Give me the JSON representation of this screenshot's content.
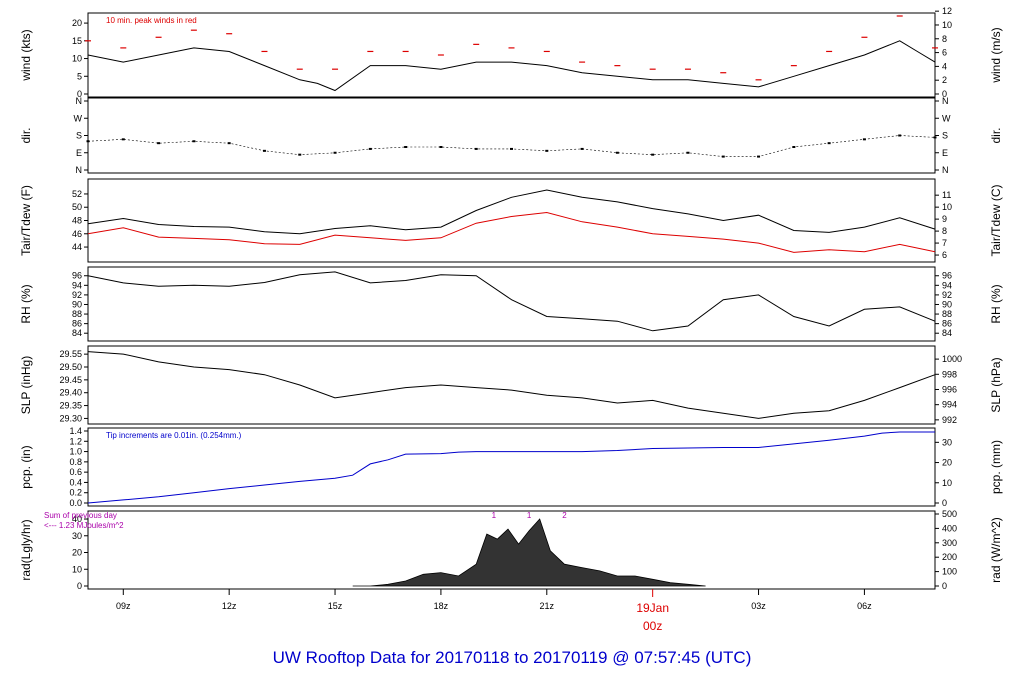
{
  "title": "UW Rooftop Data for 20170118  to  20170119 @ 07:57:45  (UTC)",
  "colors": {
    "black": "#000000",
    "red": "#dd0000",
    "blue": "#0000cc",
    "purple": "#aa00aa",
    "bg": "#ffffff"
  },
  "chart_data": {
    "type": "line",
    "x_axis": {
      "ticks": [
        {
          "hour": 9,
          "label": "09z"
        },
        {
          "hour": 12,
          "label": "12z"
        },
        {
          "hour": 15,
          "label": "15z"
        },
        {
          "hour": 18,
          "label": "18z"
        },
        {
          "hour": 21,
          "label": "21z"
        },
        {
          "hour": 27,
          "label": "03z"
        },
        {
          "hour": 30,
          "label": "06z"
        }
      ],
      "midnight": {
        "hour": 24,
        "date_label": "19Jan",
        "time_label": "00z"
      },
      "range_hours": [
        8,
        32
      ]
    },
    "panels": [
      {
        "id": "wind",
        "ylabel_left": "wind (kts)",
        "ylabel_right": "wind (m/s)",
        "ylim": [
          0,
          22
        ],
        "yticks_left": [
          0,
          5,
          10,
          15,
          20
        ],
        "right_ylim": [
          0,
          11.3
        ],
        "yticks_right": [
          0,
          2,
          4,
          6,
          8,
          10,
          12
        ],
        "annotation": "10 min. peak winds in red",
        "series": [
          {
            "color": "#000000",
            "x": [
              8,
              9,
              10,
              11,
              12,
              13,
              14,
              14.5,
              15,
              16,
              17,
              18,
              19,
              20,
              21,
              22,
              23,
              24,
              25,
              26,
              27,
              28,
              29,
              30,
              31,
              31.5,
              32
            ],
            "y": [
              11,
              9,
              11,
              13,
              12,
              8,
              4,
              3,
              1,
              8,
              8,
              7,
              9,
              9,
              8,
              6,
              5,
              4,
              4,
              3,
              2,
              5,
              8,
              11,
              15,
              12,
              9
            ]
          },
          {
            "color": "#dd0000",
            "x": [
              8,
              9,
              10,
              11,
              12,
              13,
              14,
              15,
              16,
              17,
              18,
              19,
              20,
              21,
              22,
              23,
              24,
              25,
              26,
              27,
              28,
              29,
              30,
              31,
              32
            ],
            "y": [
              15,
              13,
              16,
              18,
              17,
              12,
              7,
              7,
              12,
              12,
              11,
              14,
              13,
              12,
              9,
              8,
              7,
              7,
              6,
              4,
              8,
              12,
              16,
              22,
              13
            ]
          }
        ]
      },
      {
        "id": "dir",
        "ylabel_left": "dir.",
        "ylabel_right": "dir.",
        "ylim": [
          0,
          360
        ],
        "yticks_left": [
          "N",
          "E",
          "S",
          "W",
          "N"
        ],
        "yticks_right": [
          "N",
          "E",
          "S",
          "W",
          "N"
        ],
        "series": [
          {
            "color": "#000000",
            "x": [
              8,
              9,
              10,
              11,
              12,
              13,
              14,
              15,
              16,
              17,
              18,
              19,
              20,
              21,
              22,
              23,
              24,
              25,
              26,
              27,
              28,
              29,
              30,
              31,
              32
            ],
            "y": [
              150,
              160,
              140,
              150,
              140,
              100,
              80,
              90,
              110,
              120,
              120,
              110,
              110,
              100,
              110,
              90,
              80,
              90,
              70,
              70,
              120,
              140,
              160,
              180,
              170
            ]
          }
        ]
      },
      {
        "id": "temp",
        "ylabel_left": "Tair/Tdew (F)",
        "ylabel_right": "Tair/Tdew (C)",
        "ylim": [
          42.2,
          53.8
        ],
        "yticks_left": [
          44,
          46,
          48,
          50,
          52
        ],
        "right_ylim": [
          5.67,
          12.1
        ],
        "yticks_right": [
          6,
          7,
          8,
          9,
          10,
          11
        ],
        "series": [
          {
            "color": "#000000",
            "x": [
              8,
              9,
              10,
              11,
              12,
              13,
              14,
              15,
              16,
              17,
              18,
              19,
              20,
              21,
              22,
              23,
              24,
              25,
              26,
              27,
              28,
              29,
              30,
              31,
              32
            ],
            "y": [
              47.5,
              48.3,
              47.4,
              47.1,
              47.0,
              46.3,
              46.0,
              46.8,
              47.2,
              46.6,
              47.0,
              49.5,
              51.5,
              52.6,
              51.5,
              50.8,
              49.8,
              49.0,
              48.0,
              48.8,
              46.5,
              46.2,
              47.0,
              48.4,
              46.7
            ]
          },
          {
            "color": "#dd0000",
            "x": [
              8,
              9,
              10,
              11,
              12,
              13,
              14,
              15,
              16,
              17,
              18,
              19,
              20,
              21,
              22,
              23,
              24,
              25,
              26,
              27,
              28,
              29,
              30,
              31,
              32
            ],
            "y": [
              46.0,
              46.9,
              45.5,
              45.3,
              45.1,
              44.5,
              44.4,
              45.8,
              45.4,
              45.0,
              45.4,
              47.6,
              48.6,
              49.2,
              47.8,
              47.0,
              46.0,
              45.6,
              45.2,
              44.6,
              43.2,
              43.6,
              43.3,
              44.4,
              43.3
            ]
          }
        ]
      },
      {
        "id": "rh",
        "ylabel_left": "RH (%)",
        "ylabel_right": "RH (%)",
        "ylim": [
          83,
          97.2
        ],
        "yticks_left": [
          84,
          86,
          88,
          90,
          92,
          94,
          96
        ],
        "yticks_right": [
          84,
          86,
          88,
          90,
          92,
          94,
          96
        ],
        "series": [
          {
            "color": "#000000",
            "x": [
              8,
              9,
              10,
              11,
              12,
              13,
              14,
              15,
              16,
              17,
              18,
              19,
              20,
              21,
              22,
              23,
              24,
              25,
              26,
              27,
              28,
              29,
              30,
              31,
              32
            ],
            "y": [
              96,
              94.5,
              93.8,
              94,
              93.8,
              94.6,
              96.2,
              96.8,
              94.5,
              95,
              96.2,
              96,
              91,
              87.5,
              87,
              86.5,
              84.5,
              85.5,
              91,
              92,
              87.5,
              85.5,
              89,
              89.5,
              86.5
            ]
          }
        ]
      },
      {
        "id": "slp",
        "ylabel_left": "SLP (inHg)",
        "ylabel_right": "SLP (hPa)",
        "ylim": [
          29.29,
          29.57
        ],
        "yticks_left": [
          29.3,
          29.35,
          29.4,
          29.45,
          29.5,
          29.55
        ],
        "right_ylim": [
          991.85,
          1001.33
        ],
        "yticks_right": [
          992,
          994,
          996,
          998,
          1000
        ],
        "series": [
          {
            "color": "#000000",
            "x": [
              8,
              9,
              10,
              11,
              12,
              13,
              14,
              15,
              16,
              17,
              18,
              19,
              20,
              21,
              22,
              23,
              24,
              25,
              26,
              27,
              28,
              29,
              30,
              31,
              32
            ],
            "y": [
              29.56,
              29.55,
              29.52,
              29.5,
              29.49,
              29.47,
              29.43,
              29.38,
              29.4,
              29.42,
              29.43,
              29.42,
              29.41,
              29.39,
              29.38,
              29.36,
              29.37,
              29.34,
              29.32,
              29.3,
              29.32,
              29.33,
              29.37,
              29.42,
              29.47
            ]
          }
        ]
      },
      {
        "id": "pcp",
        "ylabel_left": "pcp. (in)",
        "ylabel_right": "pcp. (mm)",
        "ylim": [
          0,
          1.4
        ],
        "yticks_left": [
          0.0,
          0.2,
          0.4,
          0.6,
          0.8,
          1.0,
          1.2,
          1.4
        ],
        "right_ylim": [
          0,
          35.6
        ],
        "yticks_right": [
          0,
          10,
          20,
          30
        ],
        "annotation": "Tip increments are 0.01in. (0.254mm.)",
        "series": [
          {
            "color": "#0000cc",
            "x": [
              8,
              9,
              10,
              11,
              12,
              13,
              14,
              15,
              15.5,
              16,
              16.5,
              17,
              18,
              18.5,
              19,
              20,
              21,
              22,
              23,
              24,
              25,
              26,
              27,
              28,
              29,
              30,
              30.5,
              31,
              32
            ],
            "y": [
              0.0,
              0.06,
              0.12,
              0.2,
              0.28,
              0.35,
              0.42,
              0.48,
              0.54,
              0.76,
              0.84,
              0.95,
              0.96,
              0.99,
              1.0,
              1.0,
              1.0,
              1.0,
              1.02,
              1.06,
              1.07,
              1.08,
              1.08,
              1.15,
              1.22,
              1.3,
              1.36,
              1.38,
              1.38
            ]
          }
        ]
      },
      {
        "id": "rad",
        "ylabel_left": "rad(Lgly/hr)",
        "ylabel_right": "rad (W/m^2)",
        "ylim": [
          0,
          43
        ],
        "yticks_left": [
          0,
          10,
          20,
          30,
          40
        ],
        "right_ylim": [
          0,
          500
        ],
        "yticks_right": [
          0,
          100,
          200,
          300,
          400,
          500
        ],
        "annotation_lines": [
          "Sum of previous day",
          "<--- 1.23 MJoules/m^2"
        ],
        "markers": [
          {
            "hour": 19.5,
            "label": "1"
          },
          {
            "hour": 20.5,
            "label": "1"
          },
          {
            "hour": 21.5,
            "label": "2"
          }
        ],
        "series": [
          {
            "color": "#000000",
            "x": [
              15.5,
              16,
              16.5,
              17,
              17.5,
              18,
              18.5,
              19,
              19.3,
              19.6,
              19.9,
              20.2,
              20.5,
              20.8,
              21.1,
              21.5,
              22,
              22.5,
              23,
              23.5,
              24,
              24.5,
              25,
              25.5
            ],
            "y": [
              0,
              0,
              1,
              3,
              7,
              8,
              6,
              13,
              31,
              28,
              34,
              25,
              33,
              40,
              21,
              13,
              11,
              9,
              6,
              6,
              4,
              2,
              1,
              0
            ]
          }
        ]
      }
    ]
  }
}
